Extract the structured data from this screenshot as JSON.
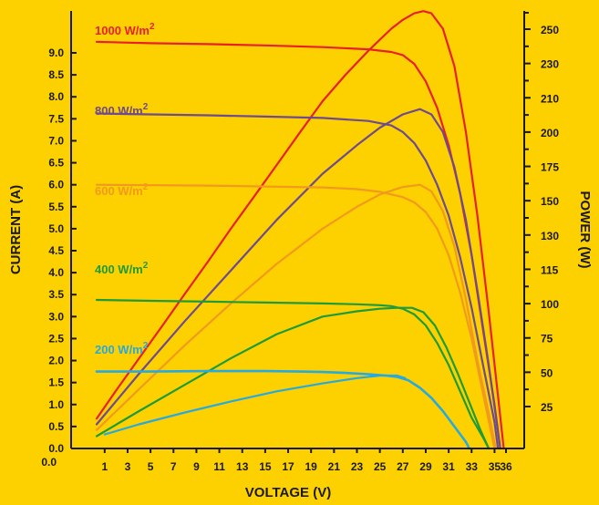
{
  "chart_data": {
    "type": "line",
    "xlabel": "VOLTAGE (V)",
    "ylabel_left": "CURRENT (A)",
    "ylabel_right": "POWER (W)",
    "xlim": [
      0,
      37
    ],
    "ylim_left": [
      0,
      9.6
    ],
    "x_ticks": [
      "1",
      "3",
      "5",
      "7",
      "9",
      "11",
      "13",
      "15",
      "17",
      "19",
      "21",
      "23",
      "25",
      "27",
      "29",
      "31",
      "33",
      "35",
      "36"
    ],
    "y_ticks_left": [
      "0.0",
      "0.5",
      "1.0",
      "1.5",
      "2.0",
      "2.5",
      "3.0",
      "3.5",
      "4.0",
      "4.5",
      "5.0",
      "5.5",
      "6.0",
      "6.5",
      "7.0",
      "7.5",
      "8.0",
      "8.5",
      "9.0"
    ],
    "y_ticks_right": [
      "25",
      "50",
      "75",
      "100",
      "115",
      "130",
      "150",
      "175",
      "200",
      "210",
      "230",
      "250"
    ],
    "colors": {
      "background": "#FDD000",
      "axis": "#1a1a1a",
      "s1000": "#E8202A",
      "s800": "#6E4A8E",
      "s600": "#F29A1D",
      "s400": "#1E9B3A",
      "s200": "#27A9E1"
    },
    "series": [
      {
        "name": "1000 W/m",
        "sup": "2",
        "color_key": "s1000",
        "iv": [
          [
            0.3,
            9.25
          ],
          [
            5,
            9.22
          ],
          [
            10,
            9.2
          ],
          [
            15,
            9.17
          ],
          [
            20,
            9.13
          ],
          [
            24,
            9.08
          ],
          [
            26,
            9.02
          ],
          [
            27,
            8.95
          ],
          [
            28,
            8.75
          ],
          [
            29,
            8.35
          ],
          [
            30,
            7.75
          ],
          [
            31,
            6.9
          ],
          [
            32,
            5.8
          ],
          [
            33,
            4.4
          ],
          [
            34,
            2.7
          ],
          [
            35,
            1.0
          ],
          [
            35.5,
            0.0
          ]
        ],
        "pv": [
          [
            0.3,
            0.68
          ],
          [
            2,
            1.32
          ],
          [
            4,
            2.05
          ],
          [
            6,
            2.78
          ],
          [
            8,
            3.52
          ],
          [
            10,
            4.25
          ],
          [
            12,
            5.0
          ],
          [
            14,
            5.72
          ],
          [
            16,
            6.45
          ],
          [
            18,
            7.18
          ],
          [
            20,
            7.9
          ],
          [
            22,
            8.5
          ],
          [
            24,
            9.05
          ],
          [
            26,
            9.55
          ],
          [
            27,
            9.75
          ],
          [
            28,
            9.9
          ],
          [
            28.8,
            9.95
          ],
          [
            29.5,
            9.9
          ],
          [
            30.5,
            9.55
          ],
          [
            31.5,
            8.7
          ],
          [
            32.5,
            7.2
          ],
          [
            33.5,
            5.3
          ],
          [
            34.5,
            3.1
          ],
          [
            35.3,
            1.2
          ],
          [
            35.8,
            0.0
          ]
        ]
      },
      {
        "name": "800 W/m",
        "sup": "2",
        "color_key": "s800",
        "iv": [
          [
            0.3,
            7.62
          ],
          [
            5,
            7.6
          ],
          [
            10,
            7.58
          ],
          [
            15,
            7.55
          ],
          [
            20,
            7.52
          ],
          [
            24,
            7.45
          ],
          [
            26,
            7.35
          ],
          [
            27,
            7.2
          ],
          [
            28,
            6.95
          ],
          [
            29,
            6.55
          ],
          [
            30,
            6.0
          ],
          [
            31,
            5.3
          ],
          [
            32,
            4.35
          ],
          [
            33,
            3.2
          ],
          [
            34,
            1.9
          ],
          [
            35,
            0.6
          ],
          [
            35.3,
            0.0
          ]
        ],
        "pv": [
          [
            0.3,
            0.55
          ],
          [
            4,
            1.7
          ],
          [
            8,
            2.9
          ],
          [
            12,
            4.05
          ],
          [
            16,
            5.2
          ],
          [
            20,
            6.25
          ],
          [
            23,
            6.9
          ],
          [
            25,
            7.3
          ],
          [
            27,
            7.6
          ],
          [
            28.5,
            7.72
          ],
          [
            29.5,
            7.6
          ],
          [
            30.5,
            7.2
          ],
          [
            31.5,
            6.4
          ],
          [
            32.5,
            5.2
          ],
          [
            33.5,
            3.6
          ],
          [
            34.5,
            1.9
          ],
          [
            35.5,
            0.0
          ]
        ]
      },
      {
        "name": "600 W/m",
        "sup": "2",
        "color_key": "s600",
        "iv": [
          [
            0.3,
            6.0
          ],
          [
            5,
            5.99
          ],
          [
            10,
            5.98
          ],
          [
            15,
            5.96
          ],
          [
            20,
            5.94
          ],
          [
            23,
            5.9
          ],
          [
            25,
            5.84
          ],
          [
            27,
            5.72
          ],
          [
            28,
            5.6
          ],
          [
            29,
            5.38
          ],
          [
            30,
            5.0
          ],
          [
            31,
            4.4
          ],
          [
            32,
            3.55
          ],
          [
            33,
            2.5
          ],
          [
            34,
            1.25
          ],
          [
            35,
            0.0
          ]
        ],
        "pv": [
          [
            0.3,
            0.42
          ],
          [
            4,
            1.35
          ],
          [
            8,
            2.35
          ],
          [
            12,
            3.3
          ],
          [
            16,
            4.2
          ],
          [
            20,
            5.0
          ],
          [
            23,
            5.5
          ],
          [
            25,
            5.78
          ],
          [
            27,
            5.95
          ],
          [
            28.5,
            6.0
          ],
          [
            29.5,
            5.85
          ],
          [
            30.5,
            5.4
          ],
          [
            31.5,
            4.6
          ],
          [
            32.5,
            3.4
          ],
          [
            33.5,
            2.0
          ],
          [
            34.5,
            0.8
          ],
          [
            35.1,
            0.0
          ]
        ]
      },
      {
        "name": "400 W/m",
        "sup": "2",
        "color_key": "s400",
        "iv": [
          [
            0.3,
            3.38
          ],
          [
            5,
            3.36
          ],
          [
            10,
            3.34
          ],
          [
            15,
            3.32
          ],
          [
            20,
            3.3
          ],
          [
            23,
            3.28
          ],
          [
            25,
            3.26
          ],
          [
            26,
            3.24
          ],
          [
            27,
            3.18
          ],
          [
            28,
            3.05
          ],
          [
            29,
            2.8
          ],
          [
            30,
            2.4
          ],
          [
            31,
            1.9
          ],
          [
            32,
            1.3
          ],
          [
            33,
            0.7
          ],
          [
            34,
            0.25
          ],
          [
            34.5,
            0.0
          ]
        ],
        "pv": [
          [
            0.3,
            0.28
          ],
          [
            4,
            0.85
          ],
          [
            8,
            1.45
          ],
          [
            12,
            2.05
          ],
          [
            16,
            2.6
          ],
          [
            20,
            3.0
          ],
          [
            23,
            3.12
          ],
          [
            25,
            3.18
          ],
          [
            26.5,
            3.2
          ],
          [
            27.8,
            3.2
          ],
          [
            28.8,
            3.1
          ],
          [
            29.8,
            2.8
          ],
          [
            30.8,
            2.3
          ],
          [
            31.8,
            1.7
          ],
          [
            32.8,
            1.05
          ],
          [
            33.8,
            0.4
          ],
          [
            34.5,
            0.0
          ]
        ]
      },
      {
        "name": "200 W/m",
        "sup": "2",
        "color_key": "s200",
        "iv": [
          [
            0.3,
            1.75
          ],
          [
            5,
            1.75
          ],
          [
            10,
            1.76
          ],
          [
            15,
            1.76
          ],
          [
            18,
            1.75
          ],
          [
            20,
            1.74
          ],
          [
            22,
            1.72
          ],
          [
            24,
            1.69
          ],
          [
            25.5,
            1.66
          ],
          [
            26.5,
            1.63
          ],
          [
            27.5,
            1.55
          ],
          [
            28.5,
            1.38
          ],
          [
            29.5,
            1.15
          ],
          [
            30.5,
            0.85
          ],
          [
            31.5,
            0.5
          ],
          [
            32.5,
            0.15
          ],
          [
            32.8,
            0.0
          ]
        ],
        "pv": [
          [
            1,
            0.32
          ],
          [
            4,
            0.55
          ],
          [
            8,
            0.82
          ],
          [
            12,
            1.07
          ],
          [
            16,
            1.3
          ],
          [
            20,
            1.48
          ],
          [
            23,
            1.6
          ],
          [
            25,
            1.66
          ],
          [
            26.5,
            1.66
          ],
          [
            27.2,
            1.6
          ]
        ]
      }
    ]
  }
}
